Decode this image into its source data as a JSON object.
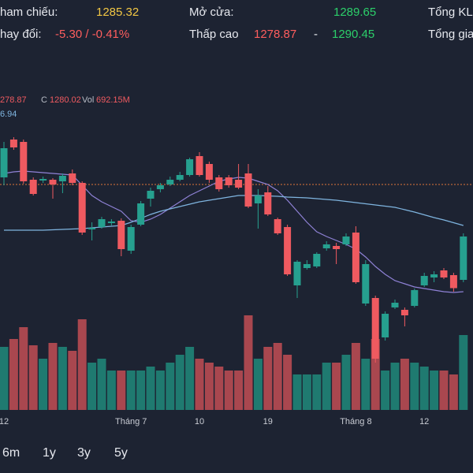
{
  "header": {
    "reference_label": "ham chiếu:",
    "reference_value": 1285.32,
    "open_label": "Mở cửa:",
    "open_value": 1289.65,
    "total_volume_label": "Tổng KL",
    "change_label": "hay đổi:",
    "change_value": "-5.30 / -0.41%",
    "low_high_label": "Thấp cao",
    "low_value": 1278.87,
    "separator": "-",
    "high_value": 1290.45,
    "total_value_label": "Tổng gia"
  },
  "legend": [
    "278.87",
    "C",
    "1280.02",
    "Vol",
    "692.15M",
    "6.94"
  ],
  "chart_data": {
    "type": "candlestick",
    "categories": [
      "12",
      null,
      null,
      null,
      null,
      null,
      null,
      null,
      null,
      null,
      null,
      null,
      null,
      "Tháng 7",
      null,
      null,
      null,
      null,
      null,
      null,
      "10",
      null,
      null,
      null,
      null,
      null,
      null,
      "19",
      null,
      null,
      null,
      null,
      null,
      null,
      null,
      null,
      "Tháng 8",
      null,
      null,
      null,
      null,
      null,
      null,
      "12",
      null,
      null,
      null,
      null
    ],
    "open": [
      1288.92,
      1308.12,
      1306.92,
      1287.72,
      1287.32,
      1287.72,
      1286.92,
      1290.92,
      1286.12,
      1262.52,
      1263.72,
      1265.72,
      1266.92,
      1251.72,
      1264.92,
      1278.12,
      1282.92,
      1285.32,
      1287.72,
      1290.12,
      1299.72,
      1295.72,
      1288.92,
      1288.92,
      1287.72,
      1290.92,
      1275.72,
      1281.32,
      1267.72,
      1263.72,
      1234.12,
      1242.92,
      1243.72,
      1252.92,
      1254.12,
      1254.92,
      1260.92,
      1224.92,
      1227.72,
      1207.72,
      1222.92,
      1221.72,
      1223.72,
      1234.12,
      1238.12,
      1241.72,
      1239.32,
      1236.92
    ],
    "high": [
      1306.92,
      1309.32,
      1308.12,
      1288.92,
      1289.32,
      1288.52,
      1290.92,
      1292.92,
      1286.92,
      1266.12,
      1268.92,
      1267.72,
      1268.12,
      1264.92,
      1276.92,
      1283.72,
      1286.12,
      1289.32,
      1291.72,
      1298.92,
      1301.72,
      1296.92,
      1290.12,
      1290.12,
      1295.72,
      1295.72,
      1282.92,
      1284.52,
      1268.52,
      1264.92,
      1246.92,
      1246.92,
      1250.92,
      1256.52,
      1255.72,
      1260.52,
      1264.12,
      1246.92,
      1228.92,
      1220.92,
      1226.92,
      1222.92,
      1232.52,
      1240.52,
      1241.32,
      1242.92,
      1240.52,
      1260.52
    ],
    "low": [
      1284.92,
      1302.92,
      1285.72,
      1279.72,
      1286.12,
      1278.12,
      1280.92,
      1284.92,
      1259.72,
      1256.92,
      1262.92,
      1264.52,
      1248.92,
      1250.12,
      1264.12,
      1274.12,
      1281.32,
      1284.52,
      1286.92,
      1289.32,
      1289.32,
      1286.12,
      1281.72,
      1283.72,
      1282.92,
      1273.32,
      1262.92,
      1269.32,
      1259.72,
      1238.92,
      1227.72,
      1242.12,
      1242.92,
      1251.72,
      1244.92,
      1254.12,
      1234.92,
      1223.72,
      1194.92,
      1206.12,
      1222.12,
      1213.32,
      1222.92,
      1233.32,
      1235.72,
      1237.32,
      1230.92,
      1235.72
    ],
    "close": [
      1303.72,
      1304.12,
      1286.92,
      1280.52,
      1288.12,
      1285.32,
      1289.72,
      1286.12,
      1260.92,
      1263.32,
      1267.72,
      1266.52,
      1252.52,
      1263.72,
      1275.72,
      1282.12,
      1284.92,
      1287.72,
      1290.12,
      1298.12,
      1290.12,
      1287.72,
      1282.92,
      1284.92,
      1283.72,
      1274.12,
      1279.72,
      1270.12,
      1260.52,
      1239.72,
      1246.12,
      1244.92,
      1250.12,
      1254.92,
      1252.52,
      1258.92,
      1235.72,
      1244.92,
      1196.92,
      1219.72,
      1225.32,
      1218.92,
      1231.72,
      1238.92,
      1239.72,
      1238.12,
      1232.72,
      1258.92
    ],
    "volume": [
      480,
      540,
      630,
      492,
      390,
      510,
      480,
      450,
      690,
      360,
      390,
      300,
      300,
      300,
      300,
      330,
      300,
      360,
      420,
      480,
      390,
      360,
      330,
      300,
      300,
      720,
      390,
      480,
      510,
      420,
      270,
      270,
      270,
      360,
      360,
      420,
      510,
      390,
      540,
      300,
      360,
      390,
      360,
      330,
      300,
      300,
      270,
      570
    ],
    "moving_averages": [
      {
        "color": "#8f82d6",
        "values": [
          1290.92,
          1291.72,
          1292.12,
          1291.72,
          1291.32,
          1290.92,
          1290.52,
          1290.12,
          1284.92,
          1279.72,
          1276.52,
          1274.12,
          1271.72,
          1266.92,
          1266.12,
          1267.72,
          1270.12,
          1273.32,
          1276.52,
          1279.72,
          1282.12,
          1284.52,
          1286.92,
          1288.12,
          1288.92,
          1288.52,
          1286.92,
          1285.32,
          1282.12,
          1277.32,
          1271.72,
          1266.12,
          1261.32,
          1258.92,
          1256.92,
          1254.92,
          1252.52,
          1248.52,
          1243.72,
          1239.72,
          1236.52,
          1234.92,
          1233.32,
          1232.52,
          1231.72,
          1230.92,
          1230.52,
          1230.92
        ]
      },
      {
        "color": "#7fb5e0",
        "values": [
          1262.12,
          1262.12,
          1262.12,
          1262.12,
          1262.12,
          1262.32,
          1262.52,
          1262.72,
          1262.92,
          1263.32,
          1263.72,
          1264.12,
          1264.52,
          1266.12,
          1268.12,
          1270.12,
          1271.72,
          1272.92,
          1274.12,
          1275.32,
          1276.52,
          1277.32,
          1278.12,
          1278.92,
          1279.72,
          1279.72,
          1279.72,
          1279.52,
          1279.32,
          1278.92,
          1278.72,
          1278.52,
          1278.12,
          1277.72,
          1277.32,
          1276.72,
          1276.12,
          1275.52,
          1274.92,
          1274.32,
          1273.72,
          1272.52,
          1271.32,
          1269.92,
          1268.52,
          1267.32,
          1265.92,
          1264.52
        ]
      }
    ],
    "up_color": "#26a08f",
    "down_color": "#ef5a60",
    "volume_up_color": "#1f7a70",
    "volume_down_color": "#a9474f",
    "ylim": [
      1170.92,
      1330.92
    ],
    "volume_ylim": [
      0,
      960
    ]
  },
  "buttons": [
    "6m",
    "1y",
    "3y",
    "5y"
  ]
}
